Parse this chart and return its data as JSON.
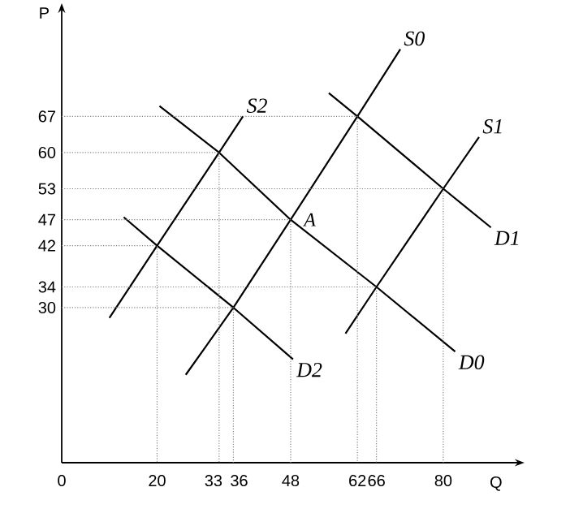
{
  "chart_data": {
    "type": "line",
    "xlabel": "Q",
    "ylabel": "P",
    "line_style": "solid",
    "xlim": [
      0,
      95
    ],
    "ylim": [
      0,
      87
    ],
    "xticks": [
      0,
      20,
      33,
      36,
      48,
      62,
      66,
      80
    ],
    "yticks": [
      30,
      34,
      42,
      47,
      53,
      60,
      67
    ],
    "annotations": [
      {
        "text": "A",
        "x": 48,
        "y": 47
      }
    ],
    "series": [
      {
        "name": "S0",
        "color": "#000000",
        "x": [
          26,
          36,
          48,
          62,
          71
        ],
        "values": [
          17,
          30,
          47,
          67,
          80
        ]
      },
      {
        "name": "S1",
        "color": "#000000",
        "x": [
          59.5,
          66,
          80,
          87.5
        ],
        "values": [
          25,
          34,
          53,
          63
        ]
      },
      {
        "name": "S2",
        "color": "#000000",
        "x": [
          10,
          20,
          33,
          38
        ],
        "values": [
          28,
          42,
          60,
          67
        ]
      },
      {
        "name": "D1",
        "color": "#000000",
        "x": [
          56,
          62,
          80,
          90
        ],
        "values": [
          71.5,
          67,
          53,
          45.5
        ]
      },
      {
        "name": "D0",
        "color": "#000000",
        "x": [
          20.5,
          33,
          48,
          66,
          82.5
        ],
        "values": [
          69,
          60,
          47,
          34,
          21.5
        ]
      },
      {
        "name": "D2",
        "color": "#000000",
        "x": [
          13,
          20,
          36,
          48.5
        ],
        "values": [
          47.5,
          42,
          30,
          20
        ]
      },
      {
        "color": "#808080",
        "line_style": "dotted",
        "x": [
          0,
          62,
          62
        ],
        "values": [
          67,
          67,
          0
        ]
      },
      {
        "color": "#808080",
        "line_style": "dotted",
        "x": [
          0,
          33,
          33
        ],
        "values": [
          60,
          60,
          0
        ]
      },
      {
        "color": "#808080",
        "line_style": "dotted",
        "x": [
          0,
          80,
          80
        ],
        "values": [
          53,
          53,
          0
        ]
      },
      {
        "color": "#808080",
        "line_style": "dotted",
        "x": [
          0,
          48,
          48
        ],
        "values": [
          47,
          47,
          0
        ]
      },
      {
        "color": "#808080",
        "line_style": "dotted",
        "x": [
          0,
          20,
          20
        ],
        "values": [
          42,
          42,
          0
        ]
      },
      {
        "color": "#808080",
        "line_style": "dotted",
        "x": [
          0,
          66,
          66
        ],
        "values": [
          34,
          34,
          0
        ]
      },
      {
        "color": "#808080",
        "line_style": "dotted",
        "x": [
          0,
          36,
          36
        ],
        "values": [
          30,
          30,
          0
        ]
      }
    ]
  }
}
